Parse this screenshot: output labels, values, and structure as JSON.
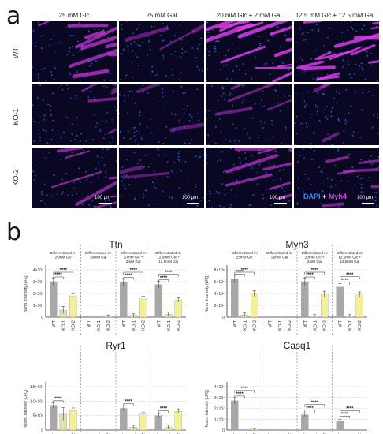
{
  "panel_a": {
    "letter": "a",
    "columns": [
      "25 mM Glc",
      "25 mM Gal",
      "20 mM Glc + 2 mM Gal",
      "12.5 mM Glc + 12.5 mM Gal"
    ],
    "rows": [
      "WT",
      "KO-1",
      "KO-2"
    ],
    "scale_bar": "100 µm",
    "legend": {
      "dapi": "DAPI",
      "plus": "+",
      "myh4": "Myh4"
    },
    "colors": {
      "dapi": "#2f6fff",
      "myh4": "#e03cf0",
      "background": "#0a0722"
    },
    "signal_intensity": [
      [
        0.6,
        0.12,
        0.95,
        0.95
      ],
      [
        0.25,
        0.05,
        0.2,
        0.15
      ],
      [
        0.45,
        0.1,
        0.5,
        0.35
      ]
    ]
  },
  "panel_b": {
    "letter": "b",
    "colors": {
      "wt": "#a8a8a8",
      "ko1": "#e5e0b0",
      "ko2": "#f5ef9a"
    },
    "significance": "****",
    "y_label": "Norm. Intensity (LFQ)"
  },
  "chart_data": [
    {
      "type": "bar",
      "title": "Ttn",
      "ylabel": "Norm. Intensity (LFQ)",
      "ylim": [
        0,
        40000000
      ],
      "yticks": [
        0,
        10000000,
        20000000,
        30000000,
        40000000
      ],
      "ytick_labels": [
        "0",
        "1×10⁷",
        "2×10⁷",
        "3×10⁷",
        "4×10⁷"
      ],
      "categories": [
        "WT",
        "KO-1",
        "KO-2"
      ],
      "groups": [
        {
          "label": "Differentiated in: 25mM Glc",
          "values": [
            30000000,
            6000000,
            18000000
          ]
        },
        {
          "label": "Differentiated in: 25mM Gal",
          "values": [
            0,
            0,
            1000000
          ]
        },
        {
          "label": "Differentiated in: 20mM Glc + 2mM Gal",
          "values": [
            29500000,
            1500000,
            15500000
          ]
        },
        {
          "label": "Differentiated in: 12.5mM Glc + 12.5mM Gal",
          "values": [
            27500000,
            2500000,
            14500000
          ]
        }
      ]
    },
    {
      "type": "bar",
      "title": "Myh3",
      "ylabel": "Norm. Intensity (LFQ)",
      "ylim": [
        0,
        8000000
      ],
      "yticks": [
        0,
        2000000,
        4000000,
        6000000,
        8000000
      ],
      "ytick_labels": [
        "0",
        "2×10⁶",
        "4×10⁶",
        "6×10⁶",
        "8×10⁶"
      ],
      "categories": [
        "WT",
        "KO-1",
        "KO-2"
      ],
      "groups": [
        {
          "label": "Differentiated in: 25mM Glc",
          "values": [
            6500000,
            400000,
            4000000
          ]
        },
        {
          "label": "Differentiated in: 25mM Gal",
          "values": [
            0,
            0,
            0
          ]
        },
        {
          "label": "Differentiated in: 20mM Glc + 2mM Gal",
          "values": [
            6000000,
            200000,
            3900000
          ]
        },
        {
          "label": "Differentiated in: 12.5mM Glc + 12.5mM Gal",
          "values": [
            5100000,
            200000,
            3800000
          ]
        }
      ]
    },
    {
      "type": "bar",
      "title": "Ryr1",
      "ylabel": "Norm. Intensity (LFQ)",
      "ylim": [
        0,
        15000000
      ],
      "yticks": [
        0,
        5000000,
        10000000,
        15000000
      ],
      "ytick_labels": [
        "0",
        "5×10⁶",
        "1.0×10⁷",
        "1.5×10⁷"
      ],
      "categories": [
        "WT",
        "KO-1",
        "KO-2"
      ],
      "groups": [
        {
          "values": [
            8500000,
            5500000,
            6800000
          ]
        },
        {
          "values": [
            0,
            0,
            0
          ]
        },
        {
          "values": [
            7500000,
            1000000,
            5500000
          ]
        },
        {
          "values": [
            5000000,
            1000000,
            6500000
          ]
        }
      ]
    },
    {
      "type": "bar",
      "title": "Casq1",
      "ylabel": "Norm. Intensity (LFQ)",
      "ylim": [
        0,
        40000000
      ],
      "yticks": [
        0,
        10000000,
        20000000,
        30000000,
        40000000
      ],
      "ytick_labels": [
        "0",
        "1×10⁷",
        "2×10⁷",
        "3×10⁷",
        "4×10⁷"
      ],
      "categories": [
        "WT",
        "KO-1",
        "KO-2"
      ],
      "groups": [
        {
          "values": [
            27000000,
            0,
            1000000
          ]
        },
        {
          "values": [
            0,
            0,
            0
          ]
        },
        {
          "values": [
            14000000,
            0,
            0
          ]
        },
        {
          "values": [
            8500000,
            0,
            0
          ]
        }
      ]
    }
  ]
}
